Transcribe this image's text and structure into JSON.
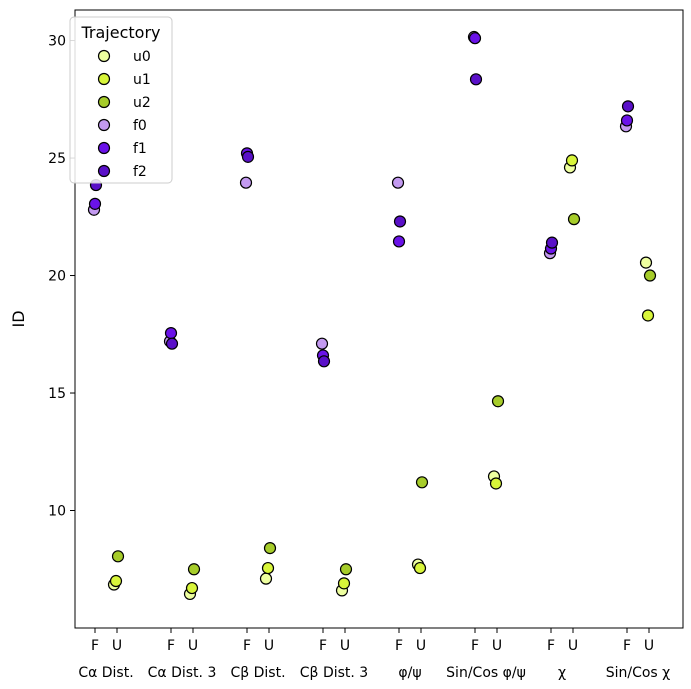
{
  "chart_data": {
    "type": "scatter",
    "title": "",
    "xlabel": "",
    "ylabel": "ID",
    "ylim": [
      5.0,
      31.3
    ],
    "yticks": [
      10,
      15,
      20,
      25,
      30
    ],
    "groups": [
      "Cα Dist.",
      "Cα Dist. 3",
      "Cβ Dist.",
      "Cβ Dist. 3",
      "φ/ψ",
      "Sin/Cos φ/ψ",
      "χ",
      "Sin/Cos χ"
    ],
    "subcategories": [
      "F",
      "U"
    ],
    "legend": {
      "title": "Trajectory",
      "location": "upper-left"
    },
    "series": [
      {
        "name": "u0",
        "subcategory": "U",
        "color": "#eeffa0",
        "offset": -0.15,
        "values": [
          6.85,
          6.45,
          7.1,
          6.6,
          7.7,
          11.45,
          24.6,
          20.55
        ]
      },
      {
        "name": "u1",
        "subcategory": "U",
        "color": "#d8f53a",
        "offset": -0.05,
        "values": [
          7.0,
          6.7,
          7.55,
          6.9,
          7.55,
          11.15,
          24.9,
          18.3
        ]
      },
      {
        "name": "u2",
        "subcategory": "U",
        "color": "#a6cc2a",
        "offset": 0.05,
        "values": [
          8.05,
          7.5,
          8.4,
          7.5,
          11.2,
          14.65,
          22.4,
          20.0
        ]
      },
      {
        "name": "f0",
        "subcategory": "F",
        "color": "#c39af0",
        "offset": -0.05,
        "values": [
          22.8,
          17.2,
          23.95,
          17.1,
          23.95,
          30.15,
          20.95,
          26.35
        ]
      },
      {
        "name": "f1",
        "subcategory": "F",
        "color": "#6a12e8",
        "offset": 0.0,
        "values": [
          23.05,
          17.55,
          25.2,
          16.6,
          21.45,
          30.1,
          21.15,
          26.6
        ]
      },
      {
        "name": "f2",
        "subcategory": "F",
        "color": "#5a10c8",
        "offset": 0.05,
        "values": [
          23.85,
          17.1,
          25.05,
          16.35,
          22.3,
          28.35,
          21.4,
          27.2
        ]
      }
    ]
  }
}
